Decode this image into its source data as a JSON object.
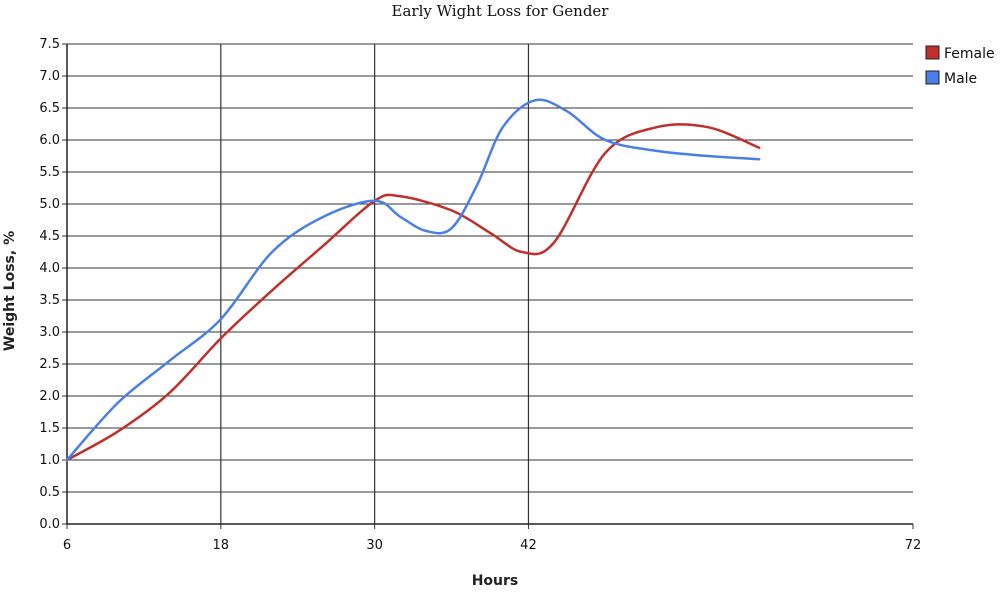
{
  "chart_data": {
    "type": "line",
    "title": "Early Wight Loss for Gender",
    "xlabel": "Hours",
    "ylabel": "Weight Loss, %",
    "xlim": [
      6,
      72
    ],
    "ylim": [
      0,
      7.5
    ],
    "x_ticks": [
      "6",
      "18",
      "30",
      "42",
      "72"
    ],
    "y_ticks": [
      "0.0",
      "0.5",
      "1.0",
      "1.5",
      "2.0",
      "2.5",
      "3.0",
      "3.5",
      "4.0",
      "4.5",
      "5.0",
      "5.5",
      "6.0",
      "6.5",
      "7.0",
      "7.5"
    ],
    "grid": true,
    "legend_position": "top-right",
    "series": [
      {
        "name": "Female",
        "color": "#c0302b",
        "points": [
          [
            6,
            1.0
          ],
          [
            10,
            1.45
          ],
          [
            14,
            2.05
          ],
          [
            18,
            2.9
          ],
          [
            22,
            3.65
          ],
          [
            26,
            4.35
          ],
          [
            30,
            5.05
          ],
          [
            32,
            5.12
          ],
          [
            36,
            4.9
          ],
          [
            39,
            4.55
          ],
          [
            41.5,
            4.25
          ],
          [
            44,
            4.4
          ],
          [
            48,
            5.8
          ],
          [
            52,
            6.2
          ],
          [
            56,
            6.2
          ],
          [
            60,
            5.88
          ]
        ]
      },
      {
        "name": "Male",
        "color": "#4a7fe8",
        "points": [
          [
            6,
            1.0
          ],
          [
            10,
            1.9
          ],
          [
            14,
            2.55
          ],
          [
            18,
            3.2
          ],
          [
            22,
            4.25
          ],
          [
            26,
            4.8
          ],
          [
            30,
            5.05
          ],
          [
            32,
            4.8
          ],
          [
            34,
            4.58
          ],
          [
            36,
            4.62
          ],
          [
            38,
            5.3
          ],
          [
            40,
            6.2
          ],
          [
            42.5,
            6.62
          ],
          [
            45,
            6.45
          ],
          [
            48,
            6.0
          ],
          [
            52,
            5.83
          ],
          [
            56,
            5.75
          ],
          [
            60,
            5.7
          ]
        ]
      }
    ]
  }
}
